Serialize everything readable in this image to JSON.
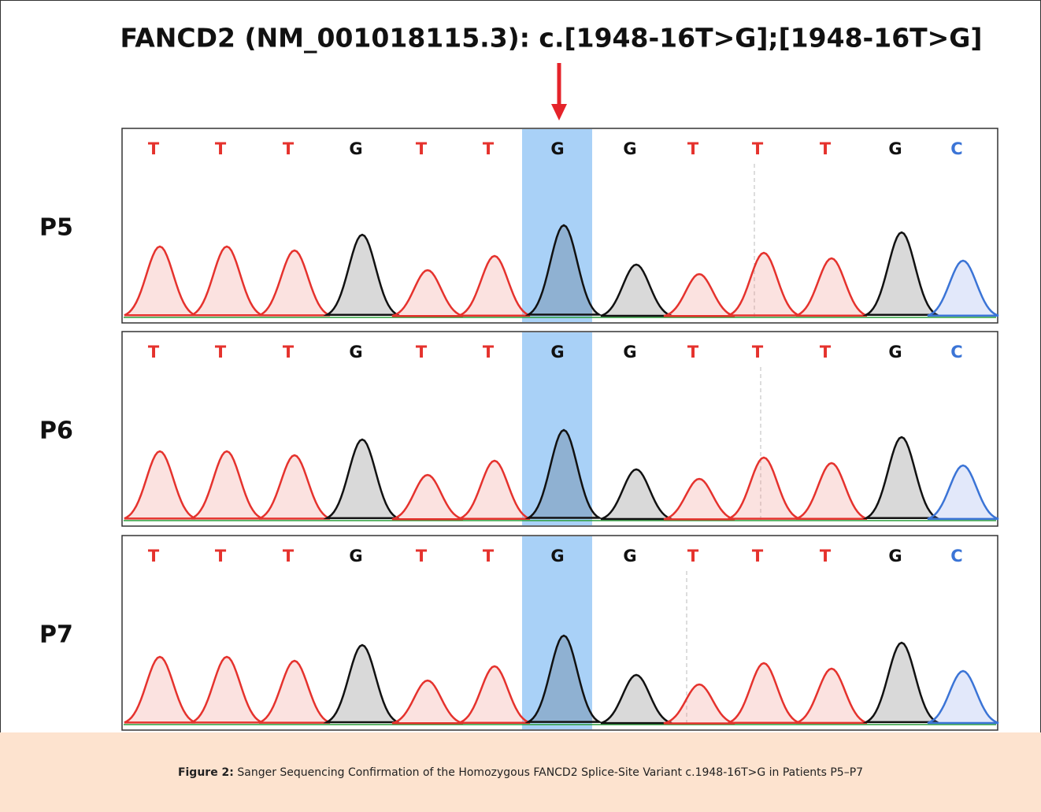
{
  "title": "FANCD2 (NM_001018115.3): c.[1948-16T>G];[1948-16T>G]",
  "panels": [
    {
      "label": "P5",
      "bases": [
        "T",
        "T",
        "T",
        "G",
        "T",
        "T",
        "G",
        "G",
        "T",
        "T",
        "T",
        "G",
        "C"
      ]
    },
    {
      "label": "P6",
      "bases": [
        "T",
        "T",
        "T",
        "G",
        "T",
        "T",
        "G",
        "G",
        "T",
        "T",
        "T",
        "G",
        "C"
      ]
    },
    {
      "label": "P7",
      "bases": [
        "T",
        "T",
        "T",
        "G",
        "T",
        "T",
        "G",
        "G",
        "T",
        "T",
        "T",
        "G",
        "C"
      ]
    }
  ],
  "caption": {
    "label": "Figure 2:",
    "text": "Sanger Sequencing Confirmation of the Homozygous FANCD2 Splice-Site Variant c.1948-16T>G in Patients P5–P7"
  }
}
